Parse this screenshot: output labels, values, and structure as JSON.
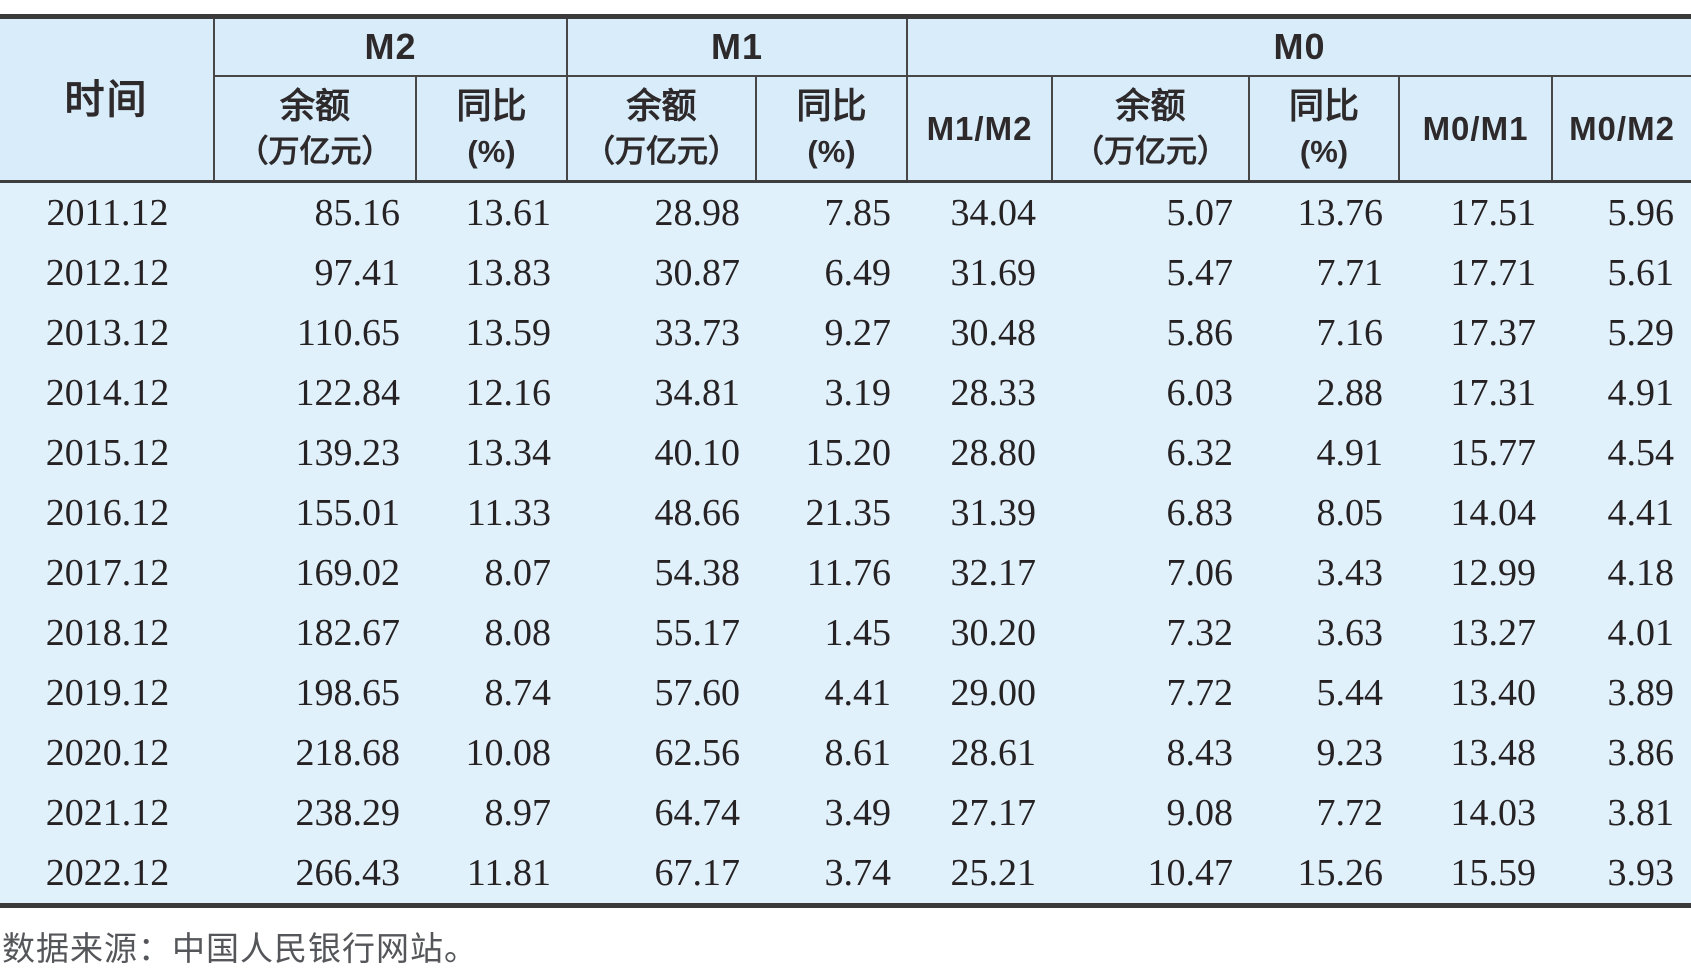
{
  "table": {
    "time_header": "时间",
    "groups": [
      {
        "label": "M2"
      },
      {
        "label": "M1"
      },
      {
        "label": "M0"
      }
    ],
    "sub": {
      "balance1": "余额",
      "balance2": "（万亿元）",
      "yoy1": "同比",
      "yoy2": "(%)",
      "m1_m2": "M1/M2",
      "m0_m1": "M0/M1",
      "m0_m2": "M0/M2"
    },
    "rows": [
      [
        "2011.12",
        "85.16",
        "13.61",
        "28.98",
        "7.85",
        "34.04",
        "5.07",
        "13.76",
        "17.51",
        "5.96"
      ],
      [
        "2012.12",
        "97.41",
        "13.83",
        "30.87",
        "6.49",
        "31.69",
        "5.47",
        "7.71",
        "17.71",
        "5.61"
      ],
      [
        "2013.12",
        "110.65",
        "13.59",
        "33.73",
        "9.27",
        "30.48",
        "5.86",
        "7.16",
        "17.37",
        "5.29"
      ],
      [
        "2014.12",
        "122.84",
        "12.16",
        "34.81",
        "3.19",
        "28.33",
        "6.03",
        "2.88",
        "17.31",
        "4.91"
      ],
      [
        "2015.12",
        "139.23",
        "13.34",
        "40.10",
        "15.20",
        "28.80",
        "6.32",
        "4.91",
        "15.77",
        "4.54"
      ],
      [
        "2016.12",
        "155.01",
        "11.33",
        "48.66",
        "21.35",
        "31.39",
        "6.83",
        "8.05",
        "14.04",
        "4.41"
      ],
      [
        "2017.12",
        "169.02",
        "8.07",
        "54.38",
        "11.76",
        "32.17",
        "7.06",
        "3.43",
        "12.99",
        "4.18"
      ],
      [
        "2018.12",
        "182.67",
        "8.08",
        "55.17",
        "1.45",
        "30.20",
        "7.32",
        "3.63",
        "13.27",
        "4.01"
      ],
      [
        "2019.12",
        "198.65",
        "8.74",
        "57.60",
        "4.41",
        "29.00",
        "7.72",
        "5.44",
        "13.40",
        "3.89"
      ],
      [
        "2020.12",
        "218.68",
        "10.08",
        "62.56",
        "8.61",
        "28.61",
        "8.43",
        "9.23",
        "13.48",
        "3.86"
      ],
      [
        "2021.12",
        "238.29",
        "8.97",
        "64.74",
        "3.49",
        "27.17",
        "9.08",
        "7.72",
        "14.03",
        "3.81"
      ],
      [
        "2022.12",
        "266.43",
        "11.81",
        "67.17",
        "3.74",
        "25.21",
        "10.47",
        "15.26",
        "15.59",
        "3.93"
      ]
    ]
  },
  "footer": {
    "source": "数据来源：中国人民银行网站。"
  },
  "colors": {
    "header_bg": "#d8ecfa",
    "body_bg": "#e0f1fc",
    "border_thick": "#3a3a3a",
    "border_line": "#474747",
    "text": "#262223",
    "footer_text": "#55565a"
  }
}
